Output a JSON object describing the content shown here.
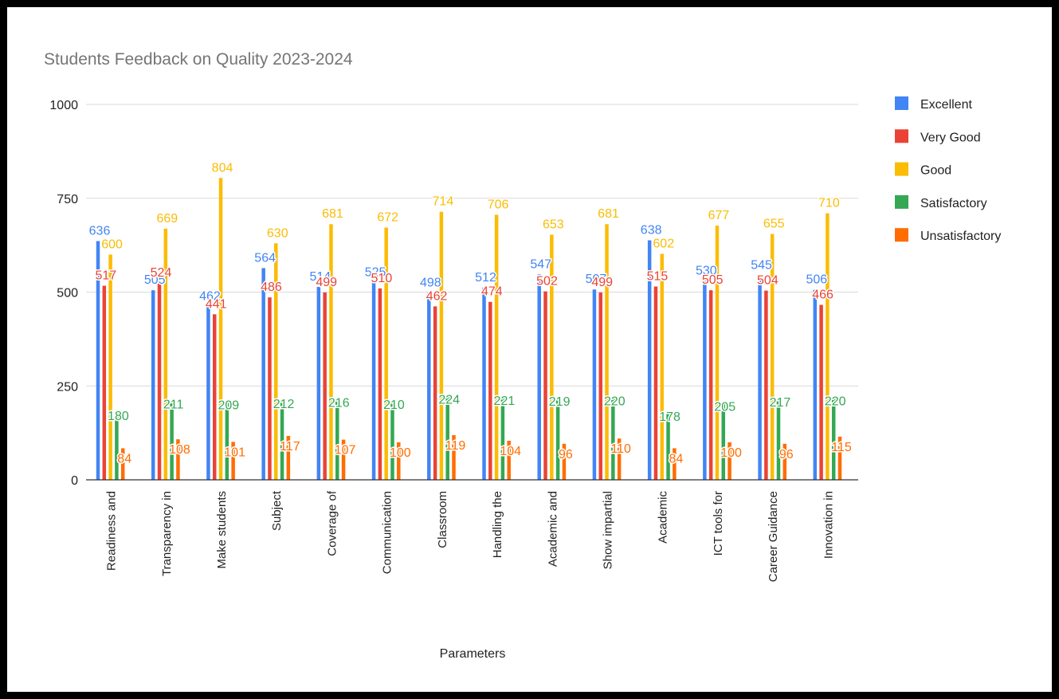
{
  "chart_data": {
    "type": "bar",
    "title": "Students Feedback on Quality 2023-2024",
    "xlabel": "Parameters",
    "ylabel": "",
    "ylim": [
      0,
      1000
    ],
    "yticks": [
      0,
      250,
      500,
      750,
      1000
    ],
    "grid": true,
    "legend_position": "right",
    "categories": [
      "Readiness and",
      "Transparency in",
      "Make students",
      "Subject",
      "Coverage of",
      "Communication",
      "Classroom",
      "Handling the",
      "Academic and",
      "Show impartial",
      "Academic",
      "ICT tools for",
      "Career Guidance",
      "Innovation in"
    ],
    "series": [
      {
        "name": "Excellent",
        "color": "#4285F4",
        "values": [
          636,
          505,
          462,
          564,
          514,
          525,
          498,
          512,
          547,
          507,
          638,
          530,
          545,
          506
        ]
      },
      {
        "name": "Very Good",
        "color": "#EA4335",
        "values": [
          517,
          524,
          441,
          486,
          499,
          510,
          462,
          474,
          502,
          499,
          515,
          505,
          504,
          466
        ]
      },
      {
        "name": "Good",
        "color": "#FBBC04",
        "values": [
          600,
          669,
          804,
          630,
          681,
          672,
          714,
          706,
          653,
          681,
          602,
          677,
          655,
          710
        ]
      },
      {
        "name": "Satisfactory",
        "color": "#34A853",
        "values": [
          180,
          211,
          209,
          212,
          216,
          210,
          224,
          221,
          219,
          220,
          178,
          205,
          217,
          220
        ]
      },
      {
        "name": "Unsatisfactory",
        "color": "#FF6D01",
        "values": [
          84,
          108,
          101,
          117,
          107,
          100,
          119,
          104,
          96,
          110,
          84,
          100,
          96,
          115
        ]
      }
    ]
  }
}
